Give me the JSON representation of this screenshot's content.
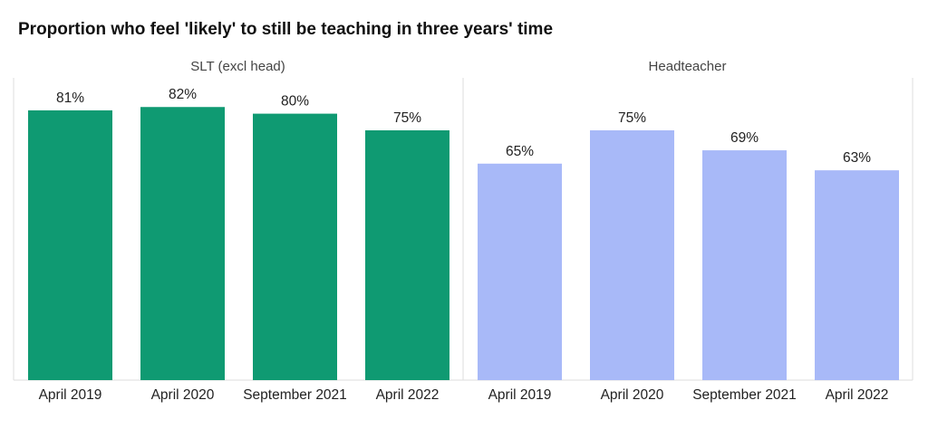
{
  "title": "Proportion who feel 'likely' to still be teaching in three years' time",
  "colors": {
    "slt": "#0f9a72",
    "head": "#a8b9f8",
    "divider": "#dddddd",
    "text": "#222222",
    "panel_label": "#444444"
  },
  "chart_data": {
    "type": "bar",
    "title": "Proportion who feel 'likely' to still be teaching in three years' time",
    "categories": [
      "April 2019",
      "April 2020",
      "September 2021",
      "April 2022"
    ],
    "ylim": [
      0,
      100
    ],
    "grid": false,
    "panels": [
      {
        "name": "SLT (excl head)",
        "color": "#0f9a72",
        "values": [
          81,
          82,
          80,
          75
        ],
        "labels": [
          "81%",
          "82%",
          "80%",
          "75%"
        ]
      },
      {
        "name": "Headteacher",
        "color": "#a8b9f8",
        "values": [
          65,
          75,
          69,
          63
        ],
        "labels": [
          "65%",
          "75%",
          "69%",
          "63%"
        ]
      }
    ]
  }
}
